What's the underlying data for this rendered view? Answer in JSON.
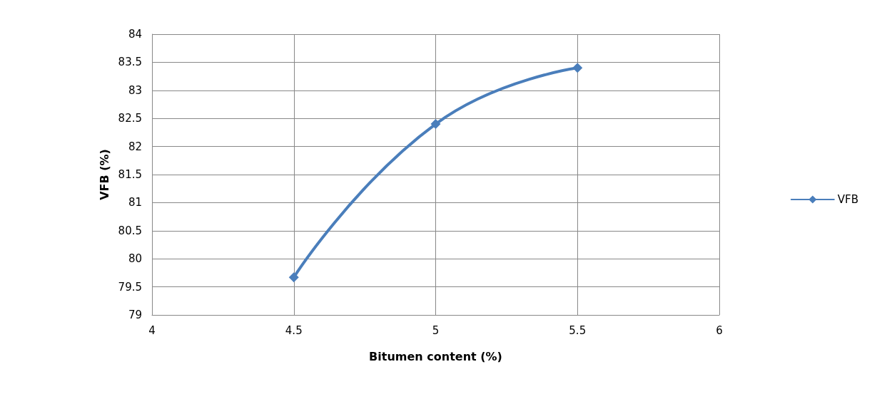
{
  "chart_data": {
    "type": "line",
    "xlabel": "Bitumen content (%)",
    "ylabel": "VFB (%)",
    "x": [
      4.5,
      5,
      5.5
    ],
    "series": [
      {
        "name": "VFB",
        "color": "#4a7ebb",
        "values": [
          79.67,
          82.4,
          83.4
        ]
      }
    ],
    "xlim": [
      4,
      6
    ],
    "xticks": [
      4,
      4.5,
      5,
      5.5,
      6
    ],
    "ylim": [
      79,
      84
    ],
    "yticks": [
      79,
      79.5,
      80,
      80.5,
      81,
      81.5,
      82,
      82.5,
      83,
      83.5,
      84
    ],
    "grid": true,
    "legend": "right",
    "marker": "diamond",
    "line_style": "solid"
  }
}
